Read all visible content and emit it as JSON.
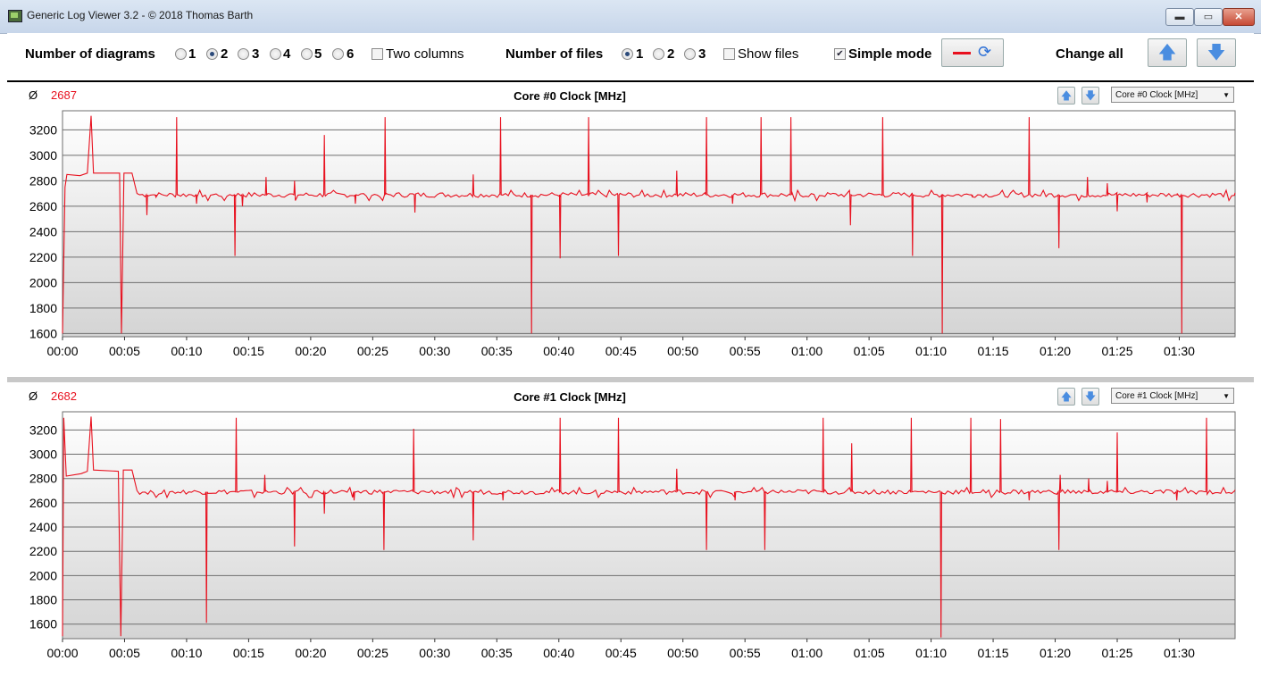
{
  "window": {
    "title": "Generic Log Viewer 3.2 - © 2018 Thomas Barth",
    "min_label": "▬",
    "max_label": "▭",
    "close_label": "✕"
  },
  "toolbar": {
    "num_diagrams_label": "Number of diagrams",
    "diagram_options": [
      "1",
      "2",
      "3",
      "4",
      "5",
      "6"
    ],
    "diagram_selected": "2",
    "two_columns_label": "Two columns",
    "two_columns_checked": false,
    "num_files_label": "Number of files",
    "file_options": [
      "1",
      "2",
      "3"
    ],
    "file_selected": "1",
    "show_files_label": "Show files",
    "show_files_checked": false,
    "simple_mode_label": "Simple mode",
    "simple_mode_checked": true,
    "change_all_label": "Change all",
    "line_color": "#e8101e"
  },
  "panels": [
    {
      "avg_symbol": "Ø",
      "avg_value": "2687",
      "title": "Core #0 Clock [MHz]",
      "select_value": "Core #0 Clock [MHz]",
      "chart_data": {
        "type": "line",
        "title": "Core #0 Clock [MHz]",
        "y_ticks": [
          1600,
          1800,
          2000,
          2200,
          2400,
          2600,
          2800,
          3000,
          3200
        ],
        "ylim": [
          1575,
          3350
        ],
        "x_ticks": [
          "00:00",
          "00:05",
          "00:10",
          "00:15",
          "00:20",
          "00:25",
          "00:30",
          "00:35",
          "00:40",
          "00:45",
          "00:50",
          "00:55",
          "01:00",
          "01:05",
          "01:10",
          "01:15",
          "01:20",
          "01:25",
          "01:30"
        ],
        "x_unit": "minutes",
        "xlim": [
          0,
          94.5
        ],
        "grid": true,
        "color": "#e8101e",
        "baseline": 2690,
        "start": [
          [
            0,
            1600
          ],
          [
            0.2,
            2750
          ],
          [
            0.35,
            2850
          ],
          [
            1.4,
            2840
          ],
          [
            2.0,
            2860
          ],
          [
            2.3,
            3310
          ],
          [
            2.5,
            2860
          ],
          [
            4.6,
            2860
          ],
          [
            4.75,
            1600
          ],
          [
            4.95,
            2860
          ],
          [
            5.6,
            2860
          ],
          [
            6.0,
            2700
          ]
        ],
        "spikes": [
          [
            6.8,
            2530
          ],
          [
            7.5,
            2680
          ],
          [
            9.2,
            3300
          ],
          [
            10.8,
            2620
          ],
          [
            13.9,
            2210
          ],
          [
            14.5,
            2600
          ],
          [
            16.4,
            2830
          ],
          [
            18.7,
            2800
          ],
          [
            21.1,
            3160
          ],
          [
            23.6,
            2620
          ],
          [
            26.0,
            3300
          ],
          [
            28.4,
            2550
          ],
          [
            33.1,
            2850
          ],
          [
            35.3,
            3300
          ],
          [
            37.8,
            1600
          ],
          [
            40.1,
            2190
          ],
          [
            42.4,
            3300
          ],
          [
            44.8,
            2210
          ],
          [
            49.5,
            2880
          ],
          [
            51.9,
            3300
          ],
          [
            54.0,
            2620
          ],
          [
            56.3,
            3300
          ],
          [
            58.7,
            3300
          ],
          [
            63.5,
            2450
          ],
          [
            66.1,
            3300
          ],
          [
            68.5,
            2210
          ],
          [
            70.9,
            1600
          ],
          [
            73.3,
            2680
          ],
          [
            77.9,
            3300
          ],
          [
            80.3,
            2270
          ],
          [
            82.6,
            2830
          ],
          [
            84.2,
            2780
          ],
          [
            85.0,
            2560
          ],
          [
            87.4,
            2630
          ],
          [
            89.8,
            2690
          ],
          [
            90.2,
            1600
          ]
        ]
      }
    },
    {
      "avg_symbol": "Ø",
      "avg_value": "2682",
      "title": "Core #1 Clock [MHz]",
      "select_value": "Core #1 Clock [MHz]",
      "chart_data": {
        "type": "line",
        "title": "Core #1 Clock [MHz]",
        "y_ticks": [
          1600,
          1800,
          2000,
          2200,
          2400,
          2600,
          2800,
          3000,
          3200
        ],
        "ylim": [
          1480,
          3350
        ],
        "x_ticks": [
          "00:00",
          "00:05",
          "00:10",
          "00:15",
          "00:20",
          "00:25",
          "00:30",
          "00:35",
          "00:40",
          "00:45",
          "00:50",
          "00:55",
          "01:00",
          "01:05",
          "01:10",
          "01:15",
          "01:20",
          "01:25",
          "01:30"
        ],
        "x_unit": "minutes",
        "xlim": [
          0,
          94.5
        ],
        "grid": true,
        "color": "#e8101e",
        "baseline": 2690,
        "start": [
          [
            0,
            1500
          ],
          [
            0.1,
            3300
          ],
          [
            0.3,
            2820
          ],
          [
            1.5,
            2840
          ],
          [
            2.0,
            2860
          ],
          [
            2.3,
            3310
          ],
          [
            2.5,
            2870
          ],
          [
            4.5,
            2860
          ],
          [
            4.7,
            1500
          ],
          [
            4.9,
            2870
          ],
          [
            5.6,
            2870
          ],
          [
            6.0,
            2700
          ]
        ],
        "spikes": [
          [
            11.6,
            1610
          ],
          [
            14.0,
            3300
          ],
          [
            16.3,
            2830
          ],
          [
            18.7,
            2240
          ],
          [
            21.1,
            2510
          ],
          [
            23.5,
            2620
          ],
          [
            25.9,
            2210
          ],
          [
            28.3,
            3210
          ],
          [
            33.1,
            2290
          ],
          [
            35.5,
            2620
          ],
          [
            40.1,
            3300
          ],
          [
            44.8,
            3300
          ],
          [
            49.5,
            2880
          ],
          [
            51.9,
            2210
          ],
          [
            54.2,
            2620
          ],
          [
            56.6,
            2210
          ],
          [
            61.3,
            3300
          ],
          [
            63.6,
            3090
          ],
          [
            68.4,
            3300
          ],
          [
            70.8,
            1490
          ],
          [
            73.2,
            3300
          ],
          [
            75.6,
            3290
          ],
          [
            77.9,
            2620
          ],
          [
            80.3,
            2210
          ],
          [
            80.4,
            2830
          ],
          [
            82.7,
            2800
          ],
          [
            84.2,
            2780
          ],
          [
            85.0,
            3180
          ],
          [
            89.8,
            2620
          ],
          [
            92.2,
            3300
          ]
        ]
      }
    }
  ]
}
